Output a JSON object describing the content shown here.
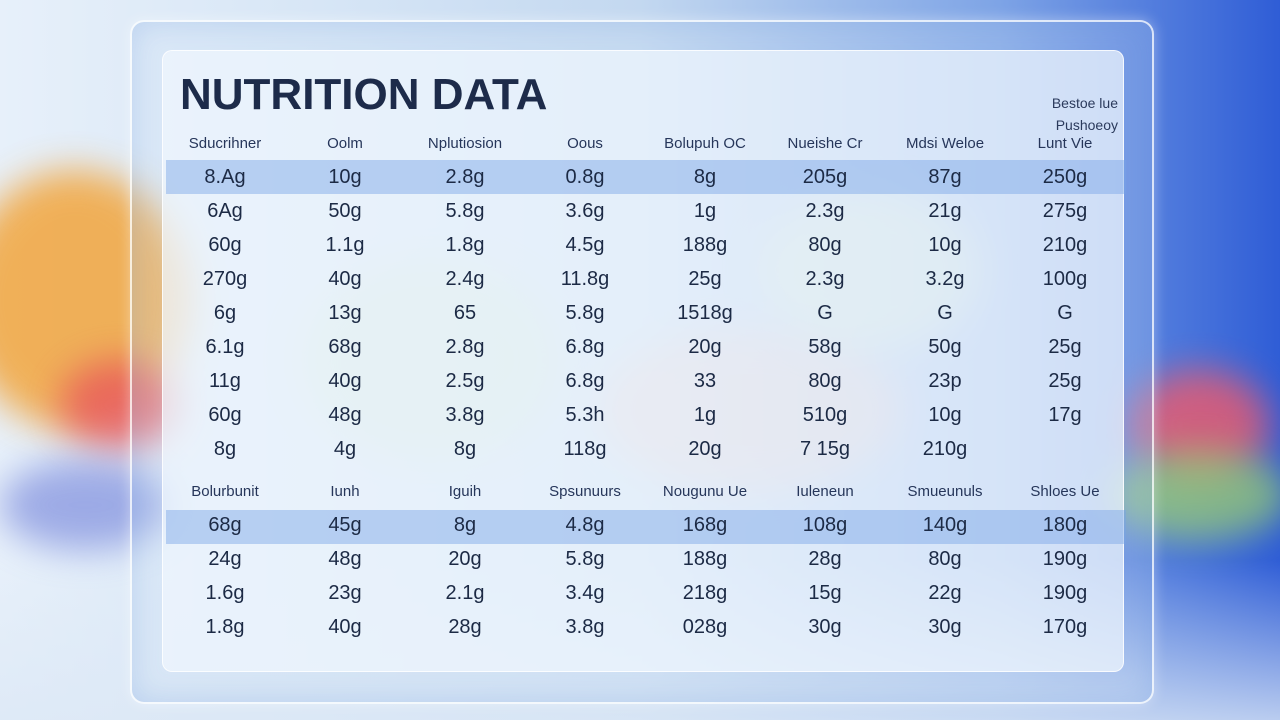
{
  "title": "NUTRITION DATA",
  "corner_note": [
    "Bestoe lue",
    "Pushoeoy"
  ],
  "headers1": [
    "Sducrihner",
    "Oolm",
    "Nplutiosion",
    "Oous",
    "Bolupuh OC",
    "Nueishe Cr",
    "Mdsi Weloe",
    "Lunt Vie"
  ],
  "rows1": [
    [
      "8.Ag",
      "10g",
      "2.8g",
      "0.8g",
      "8g",
      "205g",
      "87g",
      "250g"
    ],
    [
      "6Ag",
      "50g",
      "5.8g",
      "3.6g",
      "1g",
      "2.3g",
      "21g",
      "275g"
    ],
    [
      "60g",
      "1.1g",
      "1.8g",
      "4.5g",
      "188g",
      "80g",
      "10g",
      "210g"
    ],
    [
      "270g",
      "40g",
      "2.4g",
      "11.8g",
      "25g",
      "2.3g",
      "3.2g",
      "100g"
    ],
    [
      "6g",
      "13g",
      "65",
      "5.8g",
      "1518g",
      "G",
      "G",
      "G"
    ],
    [
      "6.1g",
      "68g",
      "2.8g",
      "6.8g",
      "20g",
      "58g",
      "50g",
      "25g"
    ],
    [
      "11g",
      "40g",
      "2.5g",
      "6.8g",
      "33",
      "80g",
      "23p",
      "25g"
    ],
    [
      "60g",
      "48g",
      "3.8g",
      "5.3h",
      "1g",
      "510g",
      "10g",
      "17g"
    ],
    [
      "8g",
      "4g",
      "8g",
      "118g",
      "20g",
      "7 15g",
      "210g",
      ""
    ]
  ],
  "headers2": [
    "Bolurbunit",
    "Iunh",
    "Iguih",
    "Spsunuurs",
    "Nougunu Ue",
    "Iuleneun",
    "Smueunuls",
    "Shloes Ue"
  ],
  "rows2": [
    [
      "68g",
      "45g",
      "8g",
      "4.8g",
      "168g",
      "108g",
      "140g",
      "180g"
    ],
    [
      "24g",
      "48g",
      "20g",
      "5.8g",
      "188g",
      "28g",
      "80g",
      "190g"
    ],
    [
      "1.6g",
      "23g",
      "2.1g",
      "3.4g",
      "218g",
      "15g",
      "22g",
      "190g"
    ],
    [
      "1.8g",
      "40g",
      "28g",
      "3.8g",
      "028g",
      "30g",
      "30g",
      "170g"
    ]
  ]
}
